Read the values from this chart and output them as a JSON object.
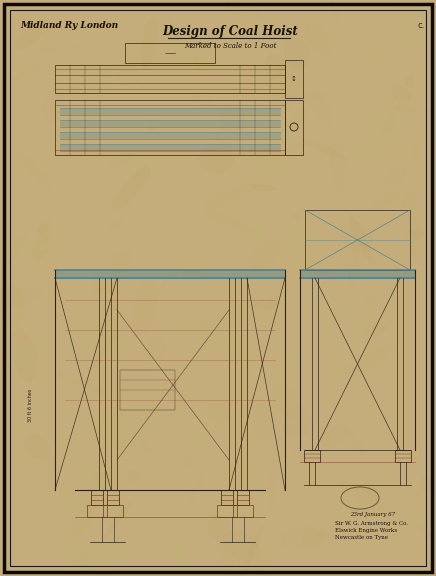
{
  "bg_color": "#1a1a1a",
  "paper_color": "#c4ad7a",
  "border_color": "#111111",
  "line_dark": "#2a2015",
  "line_red": "#7a3020",
  "line_blue": "#4a8090",
  "line_pencil": "#8a7840",
  "title_left": "Midland Ry London",
  "title_center": "Design of Coal Hoist",
  "subtitle": "Marked to Scale to 1 Foot",
  "stamp_text1": "Sir W. G. Armstrong & Co.",
  "stamp_text2": "Elswick Engine Works",
  "stamp_text3": "Newcastle on Tyne",
  "date_text": "23rd January 67",
  "fig_width": 4.36,
  "fig_height": 5.76,
  "dpi": 100
}
